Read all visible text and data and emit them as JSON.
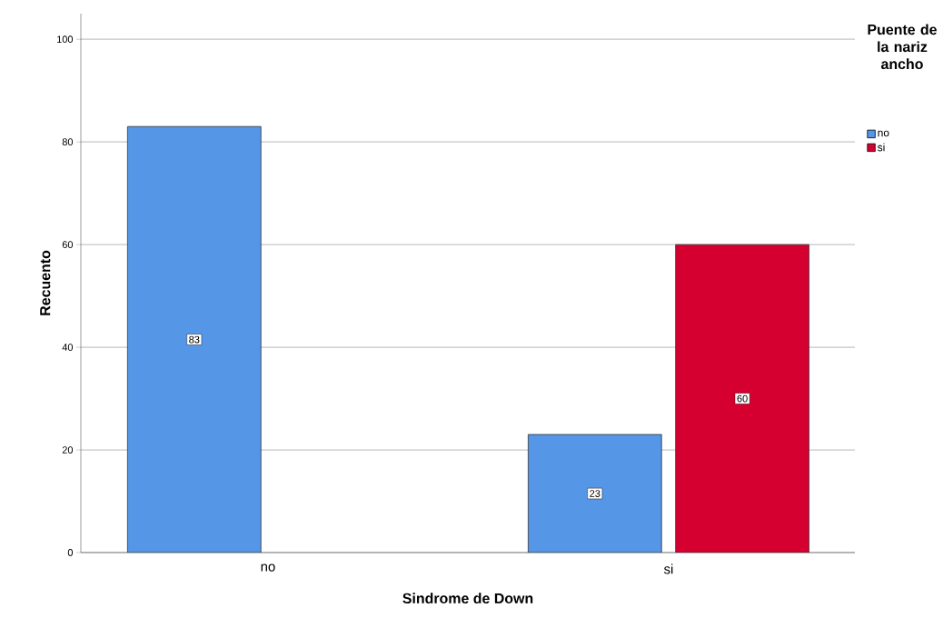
{
  "chart_data": {
    "type": "bar",
    "xlabel": "Sindrome de Down",
    "ylabel": "Recuento",
    "legend_title": "Puente de la nariz ancho",
    "categories": [
      "no",
      "si"
    ],
    "series": [
      {
        "name": "no",
        "color": "#5596e6",
        "values": [
          83,
          23
        ]
      },
      {
        "name": "si",
        "color": "#d5002f",
        "values": [
          null,
          60
        ]
      }
    ],
    "ylim": [
      0,
      105
    ],
    "yticks": [
      0,
      20,
      40,
      60,
      80,
      100
    ],
    "grid": "y",
    "legend": "top right",
    "data_labels": true
  }
}
